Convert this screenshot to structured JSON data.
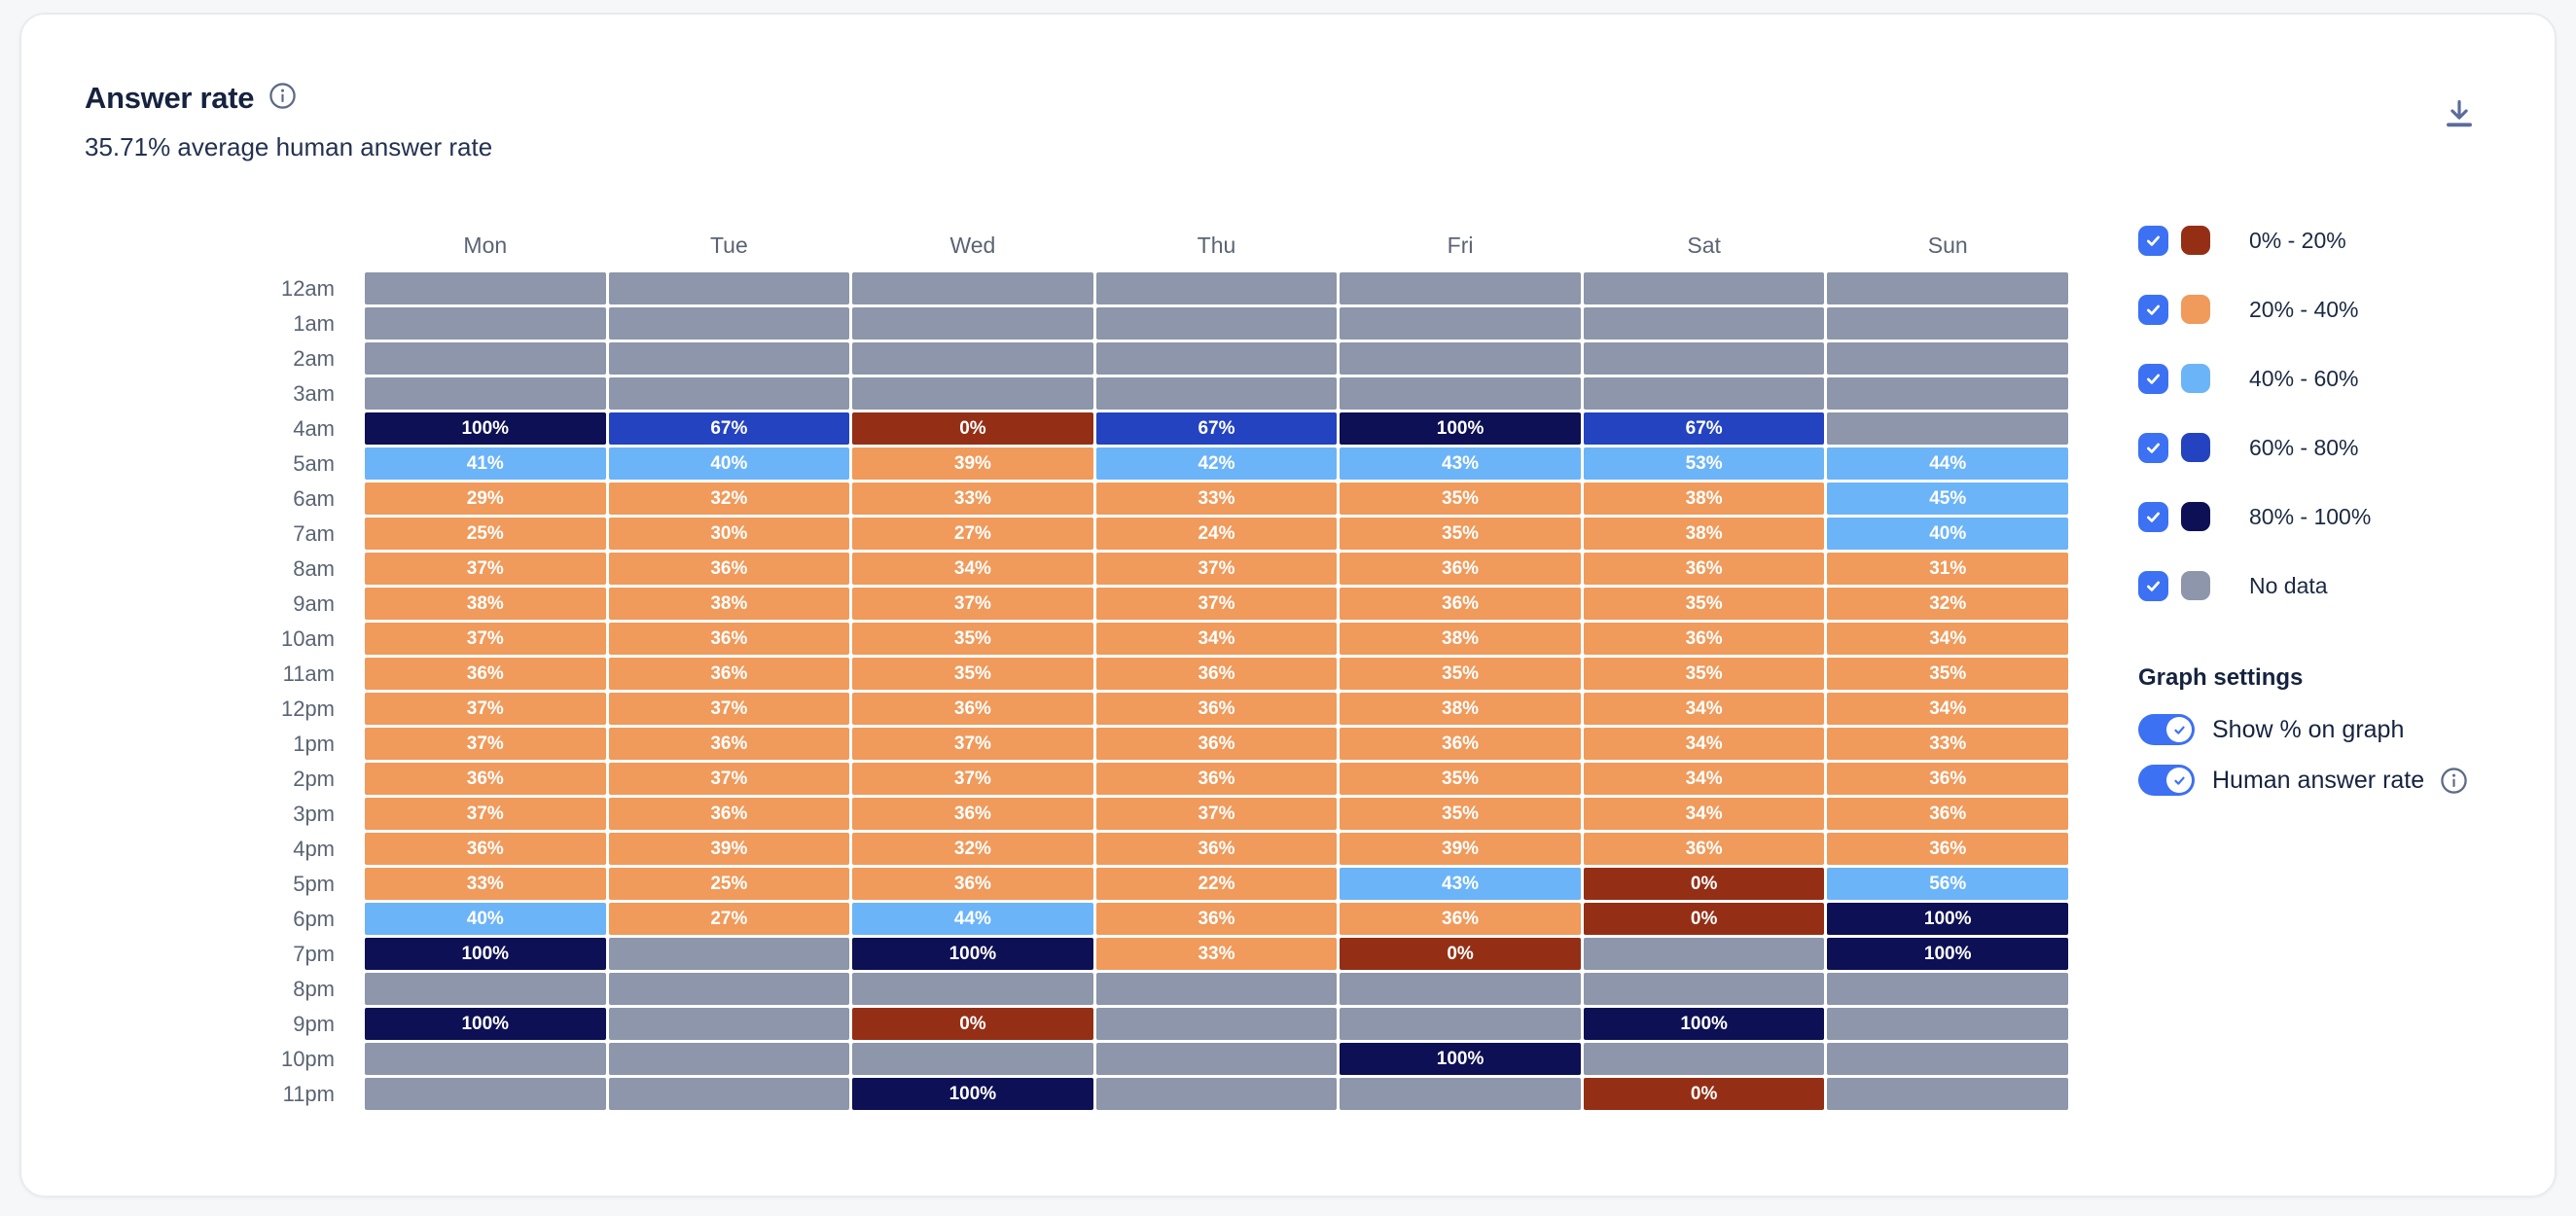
{
  "header": {
    "title": "Answer rate",
    "subtitle": "35.71% average human answer rate"
  },
  "icons": {
    "info": "circled-i",
    "download": "down-arrow-with-underline",
    "check": "checkmark"
  },
  "colors": {
    "control_blue": "#3D71F3",
    "no_data_gray": "#8D96AA",
    "bucket_0_20": "#942F16",
    "bucket_20_40": "#F09A5B",
    "bucket_40_60": "#6CB4F8",
    "bucket_60_80": "#2443C1",
    "bucket_80_100": "#0D1054"
  },
  "chart_data": {
    "type": "heatmap",
    "title": "Answer rate",
    "subtitle": "35.71% average human answer rate",
    "unit": "%",
    "columns": [
      "Mon",
      "Tue",
      "Wed",
      "Thu",
      "Fri",
      "Sat",
      "Sun"
    ],
    "rows": [
      "12am",
      "1am",
      "2am",
      "3am",
      "4am",
      "5am",
      "6am",
      "7am",
      "8am",
      "9am",
      "10am",
      "11am",
      "12pm",
      "1pm",
      "2pm",
      "3pm",
      "4pm",
      "5pm",
      "6pm",
      "7pm",
      "8pm",
      "9pm",
      "10pm",
      "11pm"
    ],
    "values": [
      [
        null,
        null,
        null,
        null,
        null,
        null,
        null
      ],
      [
        null,
        null,
        null,
        null,
        null,
        null,
        null
      ],
      [
        null,
        null,
        null,
        null,
        null,
        null,
        null
      ],
      [
        null,
        null,
        null,
        null,
        null,
        null,
        null
      ],
      [
        100,
        67,
        0,
        67,
        100,
        67,
        null
      ],
      [
        41,
        40,
        39,
        42,
        43,
        53,
        44
      ],
      [
        29,
        32,
        33,
        33,
        35,
        38,
        45
      ],
      [
        25,
        30,
        27,
        24,
        35,
        38,
        40
      ],
      [
        37,
        36,
        34,
        37,
        36,
        36,
        31
      ],
      [
        38,
        38,
        37,
        37,
        36,
        35,
        32
      ],
      [
        37,
        36,
        35,
        34,
        38,
        36,
        34
      ],
      [
        36,
        36,
        35,
        36,
        35,
        35,
        35
      ],
      [
        37,
        37,
        36,
        36,
        38,
        34,
        34
      ],
      [
        37,
        36,
        37,
        36,
        36,
        34,
        33
      ],
      [
        36,
        37,
        37,
        36,
        35,
        34,
        36
      ],
      [
        37,
        36,
        36,
        37,
        35,
        34,
        36
      ],
      [
        36,
        39,
        32,
        36,
        39,
        36,
        36
      ],
      [
        33,
        25,
        36,
        22,
        43,
        0,
        56
      ],
      [
        40,
        27,
        44,
        36,
        36,
        0,
        100
      ],
      [
        100,
        null,
        100,
        33,
        0,
        null,
        100
      ],
      [
        null,
        null,
        null,
        null,
        null,
        null,
        null
      ],
      [
        100,
        null,
        0,
        null,
        null,
        100,
        null
      ],
      [
        null,
        null,
        null,
        null,
        100,
        null,
        null
      ],
      [
        null,
        null,
        100,
        null,
        null,
        0,
        null
      ]
    ],
    "no_data_color": "#8D96AA",
    "buckets": [
      {
        "label": "0% - 20%",
        "min": 0,
        "max": 20,
        "color": "#942F16"
      },
      {
        "label": "20% - 40%",
        "min": 20,
        "max": 40,
        "color": "#F09A5B"
      },
      {
        "label": "40% - 60%",
        "min": 40,
        "max": 60,
        "color": "#6CB4F8"
      },
      {
        "label": "60% - 80%",
        "min": 60,
        "max": 80,
        "color": "#2443C1"
      },
      {
        "label": "80% - 100%",
        "min": 80,
        "max": 100,
        "color": "#0D1054"
      }
    ],
    "show_percent_labels": true,
    "legend_position": "right",
    "grid": "white-gaps"
  },
  "legend": {
    "items": [
      {
        "label": "0% - 20%",
        "color": "#942F16",
        "checked": true
      },
      {
        "label": "20% - 40%",
        "color": "#F09A5B",
        "checked": true
      },
      {
        "label": "40% - 60%",
        "color": "#6CB4F8",
        "checked": true
      },
      {
        "label": "60% - 80%",
        "color": "#2443C1",
        "checked": true
      },
      {
        "label": "80% - 100%",
        "color": "#0D1054",
        "checked": true
      },
      {
        "label": "No data",
        "color": "#8D96AA",
        "checked": true
      }
    ]
  },
  "settings": {
    "heading": "Graph settings",
    "toggles": [
      {
        "label": "Show % on graph",
        "on": true,
        "has_info": false
      },
      {
        "label": "Human answer rate",
        "on": true,
        "has_info": true
      }
    ]
  }
}
